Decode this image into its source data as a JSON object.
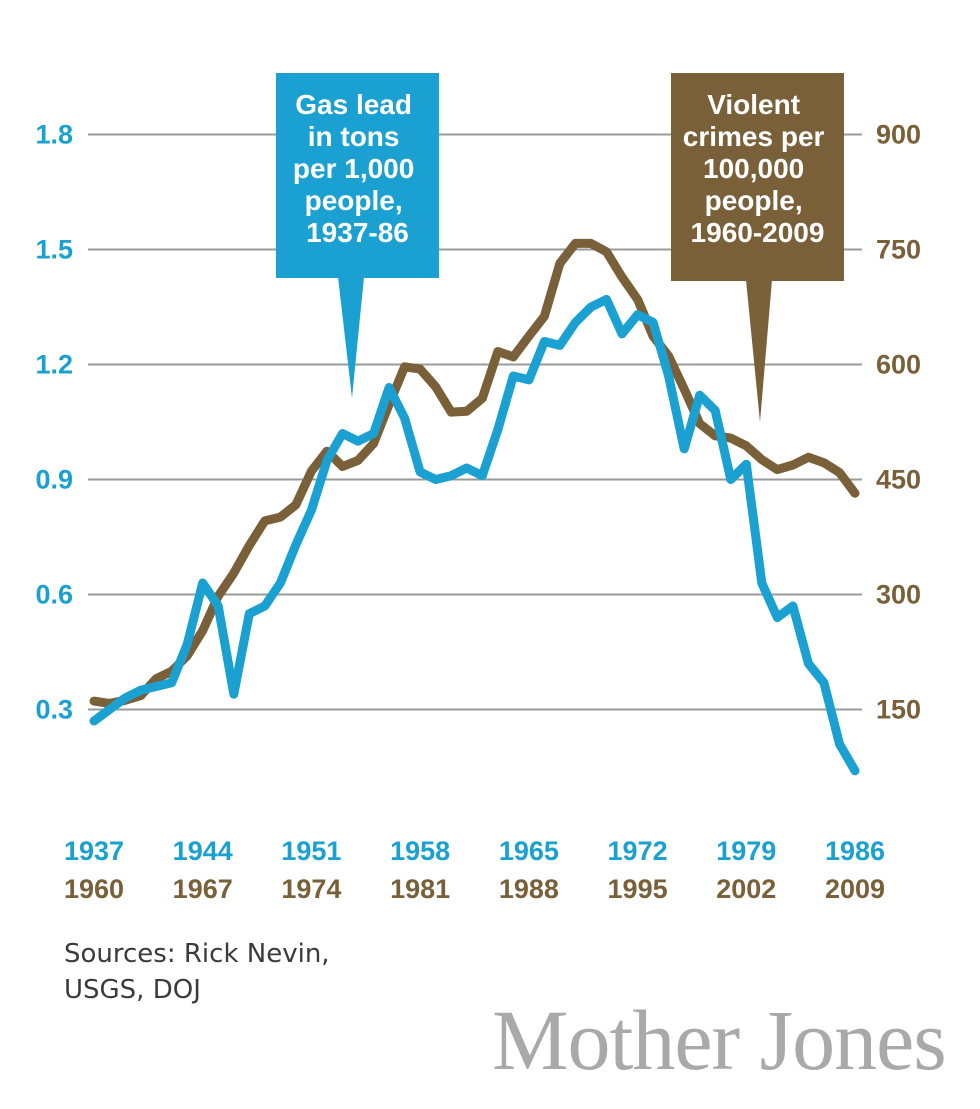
{
  "colors": {
    "lead": "#1aa1d2",
    "crime": "#7a6038",
    "grid": "#9a9a9a",
    "callout_lead_bg": "#1aa1d2",
    "callout_crime_bg": "#7a6038",
    "logo": "#a9a9a9",
    "source_text": "#3b3b3b"
  },
  "chart_data": {
    "type": "line",
    "title": "",
    "grid": true,
    "left_axis": {
      "label": "",
      "ylim": [
        0,
        1.9
      ],
      "ticks": [
        "0.3",
        "0.6",
        "0.9",
        "1.2",
        "1.5",
        "1.8"
      ]
    },
    "right_axis": {
      "label": "",
      "ylim": [
        0,
        950
      ],
      "ticks": [
        "150",
        "300",
        "450",
        "600",
        "750",
        "900"
      ]
    },
    "x_ticks_lead": [
      "1937",
      "1944",
      "1951",
      "1958",
      "1965",
      "1972",
      "1979",
      "1986"
    ],
    "x_ticks_crime": [
      "1960",
      "1967",
      "1974",
      "1981",
      "1988",
      "1995",
      "2002",
      "2009"
    ],
    "series": [
      {
        "name": "Gas lead in tons per 1,000 people, 1937-86",
        "axis": "left",
        "x": [
          1937,
          1938,
          1939,
          1940,
          1941,
          1942,
          1943,
          1944,
          1945,
          1946,
          1947,
          1948,
          1949,
          1950,
          1951,
          1952,
          1953,
          1954,
          1955,
          1956,
          1957,
          1958,
          1959,
          1960,
          1961,
          1962,
          1963,
          1964,
          1965,
          1966,
          1967,
          1968,
          1969,
          1970,
          1971,
          1972,
          1973,
          1974,
          1975,
          1976,
          1977,
          1978,
          1979,
          1980,
          1981,
          1982,
          1983,
          1984,
          1985,
          1986
        ],
        "values": [
          0.27,
          0.3,
          0.33,
          0.35,
          0.36,
          0.37,
          0.47,
          0.63,
          0.57,
          0.34,
          0.55,
          0.57,
          0.63,
          0.73,
          0.82,
          0.95,
          1.02,
          1.0,
          1.02,
          1.14,
          1.06,
          0.92,
          0.9,
          0.91,
          0.93,
          0.91,
          1.03,
          1.17,
          1.16,
          1.26,
          1.25,
          1.31,
          1.35,
          1.37,
          1.28,
          1.33,
          1.31,
          1.17,
          0.98,
          1.12,
          1.08,
          0.9,
          0.94,
          0.63,
          0.54,
          0.57,
          0.42,
          0.37,
          0.21,
          0.14
        ]
      },
      {
        "name": "Violent crimes per 100,000 people, 1960-2009",
        "axis": "right",
        "x": [
          1960,
          1961,
          1962,
          1963,
          1964,
          1965,
          1966,
          1967,
          1968,
          1969,
          1970,
          1971,
          1972,
          1973,
          1974,
          1975,
          1976,
          1977,
          1978,
          1979,
          1980,
          1981,
          1982,
          1983,
          1984,
          1985,
          1986,
          1987,
          1988,
          1989,
          1990,
          1991,
          1992,
          1993,
          1994,
          1995,
          1996,
          1997,
          1998,
          1999,
          2000,
          2001,
          2002,
          2003,
          2004,
          2005,
          2006,
          2007,
          2008,
          2009
        ],
        "values": [
          161,
          158,
          162,
          168,
          190,
          200,
          220,
          253,
          298,
          328,
          364,
          396,
          401,
          417,
          461,
          487,
          467,
          475,
          497,
          548,
          597,
          594,
          571,
          538,
          539,
          556,
          617,
          610,
          637,
          663,
          732,
          758,
          758,
          747,
          714,
          685,
          637,
          611,
          568,
          523,
          507,
          504,
          494,
          476,
          463,
          469,
          479,
          472,
          459,
          432
        ]
      }
    ],
    "annotations": [
      {
        "id": "lead",
        "lines": [
          "Gas lead",
          "in tons",
          "per 1,000",
          "people,",
          "1937-86"
        ]
      },
      {
        "id": "crime",
        "lines": [
          "Violent",
          "crimes per",
          "100,000",
          "people,",
          "1960-2009"
        ]
      }
    ]
  },
  "footer": {
    "sources_line1": "Sources: Rick Nevin,",
    "sources_line2": "USGS, DOJ",
    "logo_text": "Mother Jones"
  }
}
